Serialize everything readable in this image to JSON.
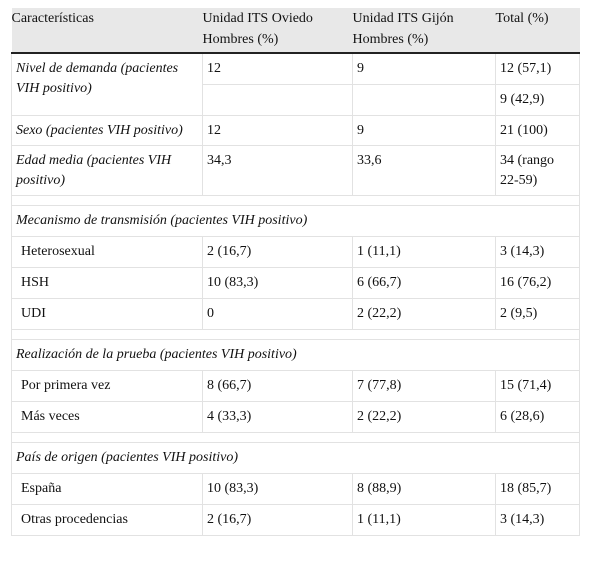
{
  "table": {
    "header": [
      "Características",
      "Unidad ITS Oviedo Hombres (%)",
      "Unidad ITS Gijón Hombres (%)",
      "Total (%)"
    ],
    "groups": [
      {
        "rows": [
          {
            "label": "Nivel de demanda (pacientes VIH positivo)",
            "lines": [
              [
                "12",
                "9",
                "12 (57,1)"
              ],
              [
                null,
                null,
                "9 (42,9)"
              ]
            ]
          },
          {
            "label": "Sexo (pacientes VIH positivo)",
            "lines": [
              [
                "12",
                "9",
                "21 (100)"
              ]
            ]
          },
          {
            "label": "Edad media (pacientes VIH positivo)",
            "lines": [
              [
                "34,3",
                "33,6",
                "34 (rango 22-59)"
              ]
            ]
          }
        ]
      },
      {
        "title": "Mecanismo de transmisión (pacientes VIH positivo)",
        "rows": [
          {
            "label": "Heterosexual",
            "lines": [
              [
                "2 (16,7)",
                "1 (11,1)",
                "3 (14,3)"
              ]
            ]
          },
          {
            "label": "HSH",
            "lines": [
              [
                "10 (83,3)",
                "6 (66,7)",
                "16 (76,2)"
              ]
            ]
          },
          {
            "label": "UDI",
            "lines": [
              [
                "0",
                "2 (22,2)",
                "2 (9,5)"
              ]
            ]
          }
        ]
      },
      {
        "title": "Realización de la prueba (pacientes VIH positivo)",
        "rows": [
          {
            "label": "Por primera vez",
            "lines": [
              [
                "8 (66,7)",
                "7 (77,8)",
                "15 (71,4)"
              ]
            ]
          },
          {
            "label": "Más veces",
            "lines": [
              [
                "4 (33,3)",
                "2 (22,2)",
                "6 (28,6)"
              ]
            ]
          }
        ]
      },
      {
        "title": "País de origen (pacientes VIH positivo)",
        "rows": [
          {
            "label": "España",
            "lines": [
              [
                "10 (83,3)",
                "8 (88,9)",
                "18 (85,7)"
              ]
            ]
          },
          {
            "label": "Otras procedencias",
            "lines": [
              [
                "2 (16,7)",
                "1 (11,1)",
                "3 (14,3)"
              ]
            ]
          }
        ]
      }
    ]
  }
}
